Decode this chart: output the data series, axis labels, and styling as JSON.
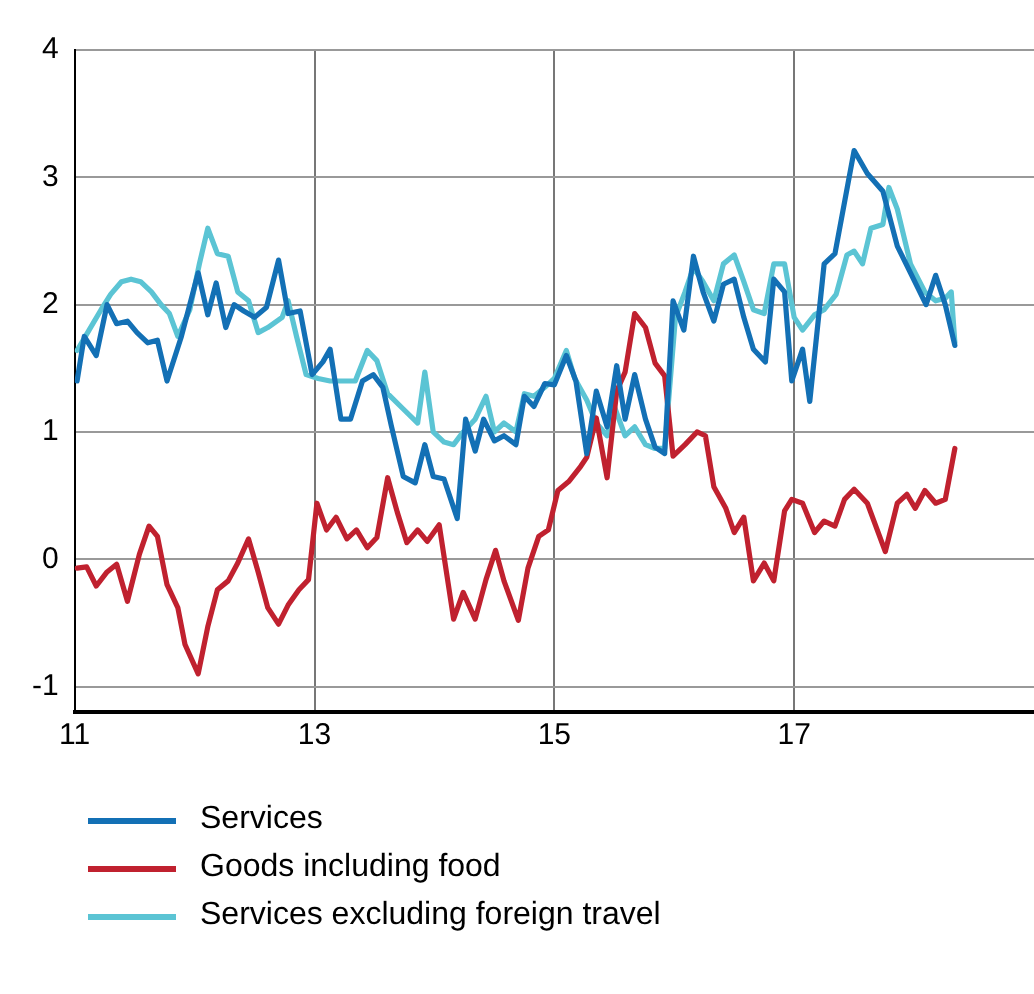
{
  "chart_data": {
    "type": "line",
    "xlim": [
      11,
      19
    ],
    "xticks": [
      11,
      13,
      15,
      17
    ],
    "ylim": [
      -1.2,
      4
    ],
    "yticks": [
      -1,
      0,
      1,
      2,
      3,
      4
    ],
    "grid": true,
    "legend": "bottom",
    "marker": "none",
    "line_style": "solid",
    "series": [
      {
        "name": "Services",
        "color": "#1370b5",
        "x": [
          11.02,
          11.08,
          11.18,
          11.27,
          11.35,
          11.44,
          11.52,
          11.61,
          11.69,
          11.77,
          11.89,
          12.03,
          12.11,
          12.18,
          12.26,
          12.33,
          12.41,
          12.5,
          12.6,
          12.7,
          12.78,
          12.88,
          12.98,
          13.07,
          13.13,
          13.22,
          13.3,
          13.4,
          13.49,
          13.57,
          13.64,
          13.74,
          13.84,
          13.92,
          13.99,
          14.08,
          14.19,
          14.26,
          14.34,
          14.41,
          14.5,
          14.58,
          14.68,
          14.75,
          14.83,
          14.92,
          15.0,
          15.1,
          15.18,
          15.27,
          15.35,
          15.44,
          15.52,
          15.59,
          15.67,
          15.76,
          15.84,
          15.92,
          15.99,
          16.08,
          16.16,
          16.24,
          16.33,
          16.41,
          16.5,
          16.58,
          16.66,
          16.76,
          16.83,
          16.92,
          16.98,
          17.07,
          17.13,
          17.25,
          17.34,
          17.5,
          17.61,
          17.74,
          17.86,
          17.97,
          18.1,
          18.18,
          18.26,
          18.34
        ],
        "values": [
          1.4,
          1.75,
          1.6,
          2.0,
          1.85,
          1.87,
          1.78,
          1.7,
          1.72,
          1.4,
          1.75,
          2.25,
          1.92,
          2.17,
          1.82,
          2.0,
          1.95,
          1.9,
          1.98,
          2.35,
          1.93,
          1.95,
          1.45,
          1.55,
          1.65,
          1.1,
          1.1,
          1.4,
          1.45,
          1.35,
          1.05,
          0.65,
          0.6,
          0.9,
          0.65,
          0.63,
          0.32,
          1.1,
          0.85,
          1.1,
          0.93,
          0.97,
          0.9,
          1.28,
          1.2,
          1.38,
          1.37,
          1.6,
          1.4,
          0.83,
          1.32,
          1.04,
          1.52,
          1.1,
          1.45,
          1.1,
          0.88,
          0.83,
          2.03,
          1.8,
          2.38,
          2.1,
          1.87,
          2.16,
          2.2,
          1.9,
          1.65,
          1.55,
          2.2,
          2.1,
          1.4,
          1.65,
          1.24,
          2.32,
          2.4,
          3.21,
          3.03,
          2.89,
          2.46,
          2.25,
          2.0,
          2.23,
          2.0,
          1.68
        ]
      },
      {
        "name": "Goods including food",
        "color": "#c0212f",
        "x": [
          11.02,
          11.1,
          11.18,
          11.27,
          11.35,
          11.44,
          11.54,
          11.62,
          11.69,
          11.77,
          11.86,
          11.92,
          12.03,
          12.11,
          12.19,
          12.28,
          12.36,
          12.45,
          12.53,
          12.61,
          12.7,
          12.78,
          12.87,
          12.95,
          13.02,
          13.1,
          13.18,
          13.27,
          13.35,
          13.44,
          13.52,
          13.61,
          13.69,
          13.77,
          13.86,
          13.94,
          14.04,
          14.16,
          14.24,
          14.34,
          14.43,
          14.51,
          14.58,
          14.7,
          14.78,
          14.87,
          14.95,
          15.03,
          15.12,
          15.22,
          15.27,
          15.35,
          15.44,
          15.52,
          15.59,
          15.67,
          15.76,
          15.84,
          15.92,
          15.99,
          16.09,
          16.19,
          16.26,
          16.33,
          16.43,
          16.5,
          16.58,
          16.66,
          16.75,
          16.83,
          16.92,
          16.98,
          17.07,
          17.17,
          17.25,
          17.34,
          17.42,
          17.5,
          17.61,
          17.76,
          17.86,
          17.94,
          18.01,
          18.09,
          18.18,
          18.26,
          18.34
        ],
        "values": [
          -0.07,
          -0.06,
          -0.21,
          -0.1,
          -0.04,
          -0.33,
          0.04,
          0.26,
          0.18,
          -0.2,
          -0.38,
          -0.67,
          -0.9,
          -0.53,
          -0.24,
          -0.17,
          -0.03,
          0.16,
          -0.1,
          -0.38,
          -0.51,
          -0.36,
          -0.24,
          -0.16,
          0.44,
          0.23,
          0.33,
          0.16,
          0.23,
          0.09,
          0.17,
          0.64,
          0.37,
          0.13,
          0.23,
          0.14,
          0.27,
          -0.47,
          -0.26,
          -0.47,
          -0.16,
          0.07,
          -0.17,
          -0.48,
          -0.07,
          0.18,
          0.23,
          0.54,
          0.61,
          0.73,
          0.8,
          1.11,
          0.64,
          1.32,
          1.47,
          1.93,
          1.82,
          1.54,
          1.44,
          0.81,
          0.9,
          1.0,
          0.97,
          0.57,
          0.4,
          0.21,
          0.33,
          -0.17,
          -0.03,
          -0.17,
          0.38,
          0.47,
          0.44,
          0.21,
          0.3,
          0.26,
          0.47,
          0.55,
          0.44,
          0.06,
          0.44,
          0.51,
          0.4,
          0.54,
          0.44,
          0.47,
          0.87
        ]
      },
      {
        "name": "Services excluding foreign travel",
        "color": "#5bc4d4",
        "x": [
          11.02,
          11.12,
          11.22,
          11.3,
          11.39,
          11.47,
          11.55,
          11.64,
          11.72,
          11.79,
          11.86,
          11.96,
          12.04,
          12.11,
          12.19,
          12.28,
          12.36,
          12.45,
          12.53,
          12.61,
          12.73,
          12.78,
          12.85,
          12.93,
          13.03,
          13.13,
          13.24,
          13.34,
          13.44,
          13.52,
          13.61,
          13.74,
          13.86,
          13.92,
          13.99,
          14.08,
          14.16,
          14.24,
          14.34,
          14.43,
          14.5,
          14.58,
          14.68,
          14.75,
          14.83,
          14.92,
          15.0,
          15.1,
          15.17,
          15.27,
          15.35,
          15.44,
          15.5,
          15.59,
          15.67,
          15.76,
          15.84,
          15.92,
          16.01,
          16.09,
          16.16,
          16.24,
          16.33,
          16.41,
          16.5,
          16.58,
          16.66,
          16.75,
          16.83,
          16.92,
          17.0,
          17.07,
          17.17,
          17.25,
          17.35,
          17.44,
          17.5,
          17.57,
          17.64,
          17.74,
          17.79,
          17.86,
          17.97,
          18.09,
          18.18,
          18.26,
          18.31,
          18.34
        ],
        "values": [
          1.64,
          1.8,
          1.96,
          2.08,
          2.18,
          2.2,
          2.18,
          2.1,
          2.0,
          1.93,
          1.75,
          1.96,
          2.32,
          2.6,
          2.4,
          2.38,
          2.1,
          2.03,
          1.78,
          1.82,
          1.9,
          2.03,
          1.75,
          1.45,
          1.42,
          1.4,
          1.4,
          1.4,
          1.64,
          1.56,
          1.3,
          1.18,
          1.07,
          1.47,
          1.0,
          0.92,
          0.9,
          1.0,
          1.1,
          1.28,
          1.0,
          1.07,
          1.0,
          1.3,
          1.28,
          1.35,
          1.42,
          1.64,
          1.42,
          1.25,
          1.07,
          0.97,
          1.2,
          0.97,
          1.04,
          0.9,
          0.87,
          0.87,
          1.9,
          2.1,
          2.29,
          2.18,
          2.03,
          2.32,
          2.39,
          2.18,
          1.96,
          1.93,
          2.32,
          2.32,
          1.9,
          1.8,
          1.92,
          1.96,
          2.08,
          2.39,
          2.42,
          2.32,
          2.6,
          2.63,
          2.92,
          2.75,
          2.32,
          2.1,
          2.03,
          2.05,
          2.1,
          1.7
        ]
      }
    ]
  }
}
